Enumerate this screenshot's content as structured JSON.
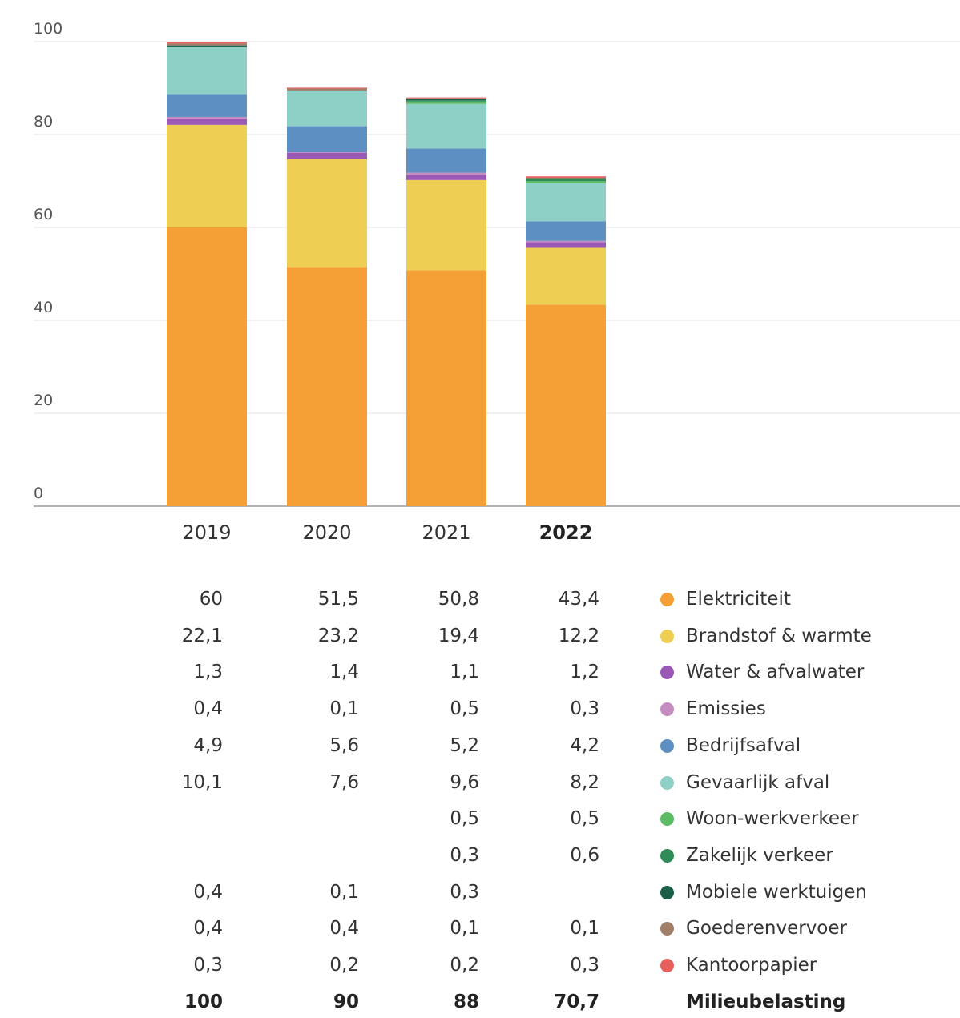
{
  "chart_data": {
    "type": "bar",
    "stacked": true,
    "categories": [
      "2019",
      "2020",
      "2021",
      "2022"
    ],
    "highlight_category": "2022",
    "ylim": [
      0,
      100
    ],
    "yticks": [
      0,
      20,
      40,
      60,
      80,
      100
    ],
    "grid": true,
    "series": [
      {
        "name": "Elektriciteit",
        "color": "#F4A037",
        "values": [
          "60",
          "51,5",
          "50,8",
          "43,4"
        ]
      },
      {
        "name": "Brandstof & warmte",
        "color": "#EECF54",
        "values": [
          "22,1",
          "23,2",
          "19,4",
          "12,2"
        ]
      },
      {
        "name": "Water & afvalwater",
        "color": "#9B59B6",
        "values": [
          "1,3",
          "1,4",
          "1,1",
          "1,2"
        ]
      },
      {
        "name": "Emissies",
        "color": "#C38DBF",
        "values": [
          "0,4",
          "0,1",
          "0,5",
          "0,3"
        ]
      },
      {
        "name": "Bedrijfsafval",
        "color": "#5D8FC3",
        "values": [
          "4,9",
          "5,6",
          "5,2",
          "4,2"
        ]
      },
      {
        "name": "Gevaarlijk afval",
        "color": "#8ECFC6",
        "values": [
          "10,1",
          "7,6",
          "9,6",
          "8,2"
        ]
      },
      {
        "name": "Woon-werkverkeer",
        "color": "#5DBB63",
        "values": [
          "",
          "",
          "0,5",
          "0,5"
        ]
      },
      {
        "name": "Zakelijk verkeer",
        "color": "#2E8B57",
        "values": [
          "",
          "",
          "0,3",
          "0,6"
        ]
      },
      {
        "name": "Mobiele werktuigen",
        "color": "#1B5E4A",
        "values": [
          "0,4",
          "0,1",
          "0,3",
          ""
        ]
      },
      {
        "name": "Goederenvervoer",
        "color": "#A07E68",
        "values": [
          "0,4",
          "0,4",
          "0,1",
          "0,1"
        ]
      },
      {
        "name": "Kantoorpapier",
        "color": "#E5605C",
        "values": [
          "0,3",
          "0,2",
          "0,2",
          "0,3"
        ]
      }
    ],
    "total": {
      "name": "Milieubelasting",
      "values": [
        "100",
        "90",
        "88",
        "70,7"
      ]
    },
    "legend_position": "right"
  }
}
